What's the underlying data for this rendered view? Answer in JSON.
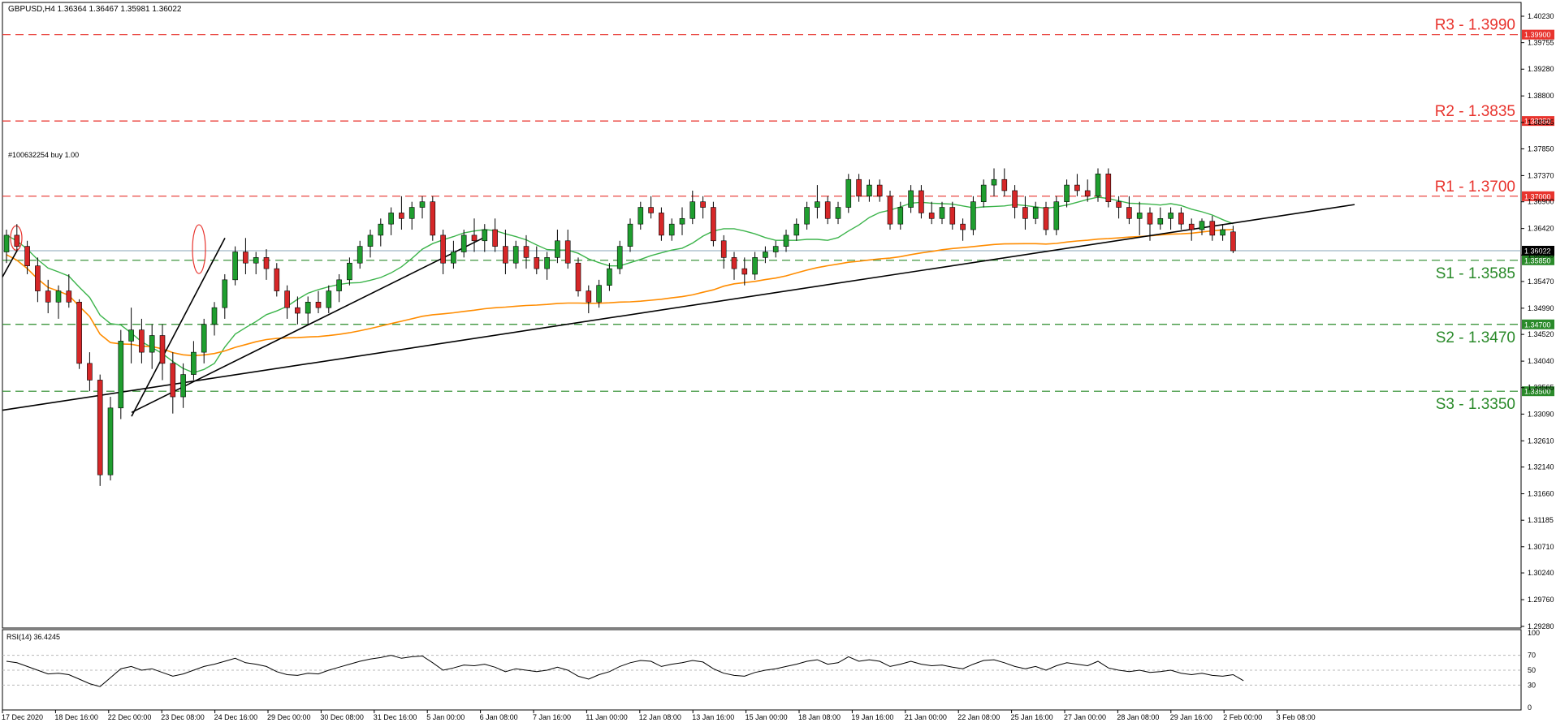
{
  "window": {
    "title": "GBPUSD,H4  1.36364 1.36467 1.35981 1.36022",
    "order_label": "#100632254 buy 1.00"
  },
  "colors": {
    "bull": "#1f9e2f",
    "bear": "#d62728",
    "ma_fast": "#3cb44b",
    "ma_slow": "#ff8c00",
    "resistance": "#e8342e",
    "support": "#2a8a2a",
    "trend": "#000000"
  },
  "chart_data": {
    "type": "candlestick",
    "symbol": "GBPUSD",
    "timeframe": "H4",
    "ohlc": {
      "open": 1.36364,
      "high": 1.36467,
      "low": 1.35981,
      "close": 1.36022
    },
    "ylim": [
      1.2928,
      1.4023
    ],
    "y_ticks": [
      "1.40230",
      "1.39755",
      "1.39280",
      "1.38800",
      "1.38325",
      "1.37850",
      "1.37370",
      "1.36900",
      "1.36420",
      "1.35945",
      "1.35470",
      "1.34990",
      "1.34520",
      "1.34040",
      "1.33565",
      "1.33090",
      "1.32610",
      "1.32140",
      "1.31660",
      "1.31185",
      "1.30710",
      "1.30240",
      "1.29760",
      "1.29280"
    ],
    "x_ticks": [
      "17 Dec 2020",
      "18 Dec 16:00",
      "22 Dec 00:00",
      "23 Dec 08:00",
      "24 Dec 16:00",
      "29 Dec 00:00",
      "30 Dec 08:00",
      "31 Dec 16:00",
      "5 Jan 00:00",
      "6 Jan 08:00",
      "7 Jan 16:00",
      "11 Jan 00:00",
      "12 Jan 08:00",
      "13 Jan 16:00",
      "15 Jan 00:00",
      "18 Jan 08:00",
      "19 Jan 16:00",
      "21 Jan 00:00",
      "22 Jan 08:00",
      "25 Jan 16:00",
      "27 Jan 00:00",
      "28 Jan 08:00",
      "29 Jan 16:00",
      "2 Feb 00:00",
      "3 Feb 08:00"
    ],
    "levels": [
      {
        "name": "R3 - 1.3990",
        "price": 1.399,
        "tag": "1.39900",
        "kind": "resistance"
      },
      {
        "name": "R2 - 1.3835",
        "price": 1.3835,
        "tag": "1.38350",
        "kind": "resistance"
      },
      {
        "name": "R1 - 1.3700",
        "price": 1.37,
        "tag": "1.37000",
        "kind": "resistance"
      },
      {
        "name": "S1 - 1.3585",
        "price": 1.3585,
        "tag": "1.35850",
        "kind": "support"
      },
      {
        "name": "S2 - 1.3470",
        "price": 1.347,
        "tag": "1.34700",
        "kind": "support"
      },
      {
        "name": "S3 - 1.3350",
        "price": 1.335,
        "tag": "1.33500",
        "kind": "support"
      }
    ],
    "current_price": {
      "price": 1.36022,
      "tag": "1.36022"
    },
    "candles": [
      [
        1.36,
        1.364,
        1.358,
        1.363
      ],
      [
        1.363,
        1.365,
        1.36,
        1.361
      ],
      [
        1.361,
        1.362,
        1.356,
        1.3575
      ],
      [
        1.3575,
        1.359,
        1.351,
        1.353
      ],
      [
        1.353,
        1.355,
        1.349,
        1.351
      ],
      [
        1.351,
        1.354,
        1.348,
        1.353
      ],
      [
        1.353,
        1.356,
        1.35,
        1.351
      ],
      [
        1.351,
        1.3515,
        1.339,
        1.34
      ],
      [
        1.34,
        1.342,
        1.335,
        1.337
      ],
      [
        1.337,
        1.338,
        1.318,
        1.32
      ],
      [
        1.32,
        1.334,
        1.319,
        1.332
      ],
      [
        1.332,
        1.346,
        1.33,
        1.344
      ],
      [
        1.344,
        1.35,
        1.34,
        1.346
      ],
      [
        1.346,
        1.348,
        1.34,
        1.342
      ],
      [
        1.342,
        1.347,
        1.339,
        1.345
      ],
      [
        1.345,
        1.347,
        1.337,
        1.34
      ],
      [
        1.34,
        1.342,
        1.331,
        1.334
      ],
      [
        1.334,
        1.34,
        1.332,
        1.338
      ],
      [
        1.338,
        1.344,
        1.337,
        1.342
      ],
      [
        1.342,
        1.348,
        1.34,
        1.347
      ],
      [
        1.347,
        1.351,
        1.345,
        1.35
      ],
      [
        1.35,
        1.356,
        1.348,
        1.355
      ],
      [
        1.355,
        1.361,
        1.354,
        1.36
      ],
      [
        1.36,
        1.3625,
        1.356,
        1.358
      ],
      [
        1.358,
        1.36,
        1.356,
        1.359
      ],
      [
        1.359,
        1.3605,
        1.355,
        1.357
      ],
      [
        1.357,
        1.358,
        1.352,
        1.353
      ],
      [
        1.353,
        1.354,
        1.348,
        1.35
      ],
      [
        1.35,
        1.352,
        1.347,
        1.349
      ],
      [
        1.349,
        1.352,
        1.347,
        1.351
      ],
      [
        1.351,
        1.353,
        1.349,
        1.35
      ],
      [
        1.35,
        1.354,
        1.349,
        1.353
      ],
      [
        1.353,
        1.356,
        1.351,
        1.355
      ],
      [
        1.355,
        1.359,
        1.354,
        1.358
      ],
      [
        1.358,
        1.362,
        1.357,
        1.361
      ],
      [
        1.361,
        1.364,
        1.359,
        1.363
      ],
      [
        1.363,
        1.366,
        1.361,
        1.365
      ],
      [
        1.365,
        1.368,
        1.363,
        1.367
      ],
      [
        1.367,
        1.37,
        1.364,
        1.366
      ],
      [
        1.366,
        1.369,
        1.364,
        1.368
      ],
      [
        1.368,
        1.37,
        1.366,
        1.369
      ],
      [
        1.369,
        1.37,
        1.362,
        1.363
      ],
      [
        1.363,
        1.364,
        1.356,
        1.358
      ],
      [
        1.358,
        1.362,
        1.357,
        1.36
      ],
      [
        1.36,
        1.364,
        1.359,
        1.363
      ],
      [
        1.363,
        1.366,
        1.36,
        1.362
      ],
      [
        1.362,
        1.365,
        1.36,
        1.364
      ],
      [
        1.364,
        1.366,
        1.36,
        1.361
      ],
      [
        1.361,
        1.364,
        1.356,
        1.358
      ],
      [
        1.358,
        1.362,
        1.357,
        1.361
      ],
      [
        1.361,
        1.363,
        1.357,
        1.359
      ],
      [
        1.359,
        1.361,
        1.356,
        1.357
      ],
      [
        1.357,
        1.36,
        1.355,
        1.359
      ],
      [
        1.359,
        1.364,
        1.358,
        1.362
      ],
      [
        1.362,
        1.364,
        1.357,
        1.358
      ],
      [
        1.358,
        1.359,
        1.352,
        1.353
      ],
      [
        1.353,
        1.354,
        1.349,
        1.351
      ],
      [
        1.351,
        1.355,
        1.35,
        1.354
      ],
      [
        1.354,
        1.358,
        1.353,
        1.357
      ],
      [
        1.357,
        1.362,
        1.356,
        1.361
      ],
      [
        1.361,
        1.366,
        1.36,
        1.365
      ],
      [
        1.365,
        1.369,
        1.364,
        1.368
      ],
      [
        1.368,
        1.37,
        1.366,
        1.367
      ],
      [
        1.367,
        1.368,
        1.362,
        1.363
      ],
      [
        1.363,
        1.366,
        1.362,
        1.365
      ],
      [
        1.365,
        1.368,
        1.363,
        1.366
      ],
      [
        1.366,
        1.371,
        1.365,
        1.369
      ],
      [
        1.369,
        1.37,
        1.366,
        1.368
      ],
      [
        1.368,
        1.369,
        1.361,
        1.362
      ],
      [
        1.362,
        1.363,
        1.357,
        1.359
      ],
      [
        1.359,
        1.36,
        1.355,
        1.357
      ],
      [
        1.357,
        1.359,
        1.354,
        1.356
      ],
      [
        1.356,
        1.36,
        1.355,
        1.359
      ],
      [
        1.359,
        1.361,
        1.358,
        1.36
      ],
      [
        1.36,
        1.362,
        1.359,
        1.361
      ],
      [
        1.361,
        1.364,
        1.36,
        1.363
      ],
      [
        1.363,
        1.366,
        1.362,
        1.365
      ],
      [
        1.365,
        1.369,
        1.364,
        1.368
      ],
      [
        1.368,
        1.372,
        1.366,
        1.369
      ],
      [
        1.369,
        1.37,
        1.365,
        1.366
      ],
      [
        1.366,
        1.369,
        1.365,
        1.368
      ],
      [
        1.368,
        1.374,
        1.367,
        1.373
      ],
      [
        1.373,
        1.374,
        1.369,
        1.37
      ],
      [
        1.37,
        1.373,
        1.369,
        1.372
      ],
      [
        1.372,
        1.373,
        1.369,
        1.37
      ],
      [
        1.37,
        1.371,
        1.364,
        1.365
      ],
      [
        1.365,
        1.369,
        1.364,
        1.368
      ],
      [
        1.368,
        1.372,
        1.367,
        1.371
      ],
      [
        1.371,
        1.372,
        1.366,
        1.367
      ],
      [
        1.367,
        1.369,
        1.365,
        1.366
      ],
      [
        1.366,
        1.369,
        1.365,
        1.368
      ],
      [
        1.368,
        1.369,
        1.364,
        1.365
      ],
      [
        1.365,
        1.366,
        1.362,
        1.364
      ],
      [
        1.364,
        1.37,
        1.363,
        1.369
      ],
      [
        1.369,
        1.373,
        1.368,
        1.372
      ],
      [
        1.372,
        1.375,
        1.37,
        1.373
      ],
      [
        1.373,
        1.375,
        1.37,
        1.371
      ],
      [
        1.371,
        1.372,
        1.366,
        1.368
      ],
      [
        1.368,
        1.37,
        1.364,
        1.366
      ],
      [
        1.366,
        1.369,
        1.365,
        1.368
      ],
      [
        1.368,
        1.369,
        1.363,
        1.364
      ],
      [
        1.364,
        1.37,
        1.363,
        1.369
      ],
      [
        1.369,
        1.373,
        1.368,
        1.372
      ],
      [
        1.372,
        1.374,
        1.37,
        1.371
      ],
      [
        1.371,
        1.373,
        1.369,
        1.37
      ],
      [
        1.37,
        1.375,
        1.369,
        1.374
      ],
      [
        1.374,
        1.375,
        1.368,
        1.369
      ],
      [
        1.369,
        1.37,
        1.366,
        1.368
      ],
      [
        1.368,
        1.37,
        1.365,
        1.366
      ],
      [
        1.366,
        1.369,
        1.363,
        1.367
      ],
      [
        1.367,
        1.368,
        1.362,
        1.365
      ],
      [
        1.365,
        1.368,
        1.364,
        1.366
      ],
      [
        1.366,
        1.368,
        1.364,
        1.367
      ],
      [
        1.367,
        1.368,
        1.364,
        1.365
      ],
      [
        1.365,
        1.366,
        1.362,
        1.364
      ],
      [
        1.364,
        1.366,
        1.363,
        1.3655
      ],
      [
        1.3655,
        1.3665,
        1.362,
        1.363
      ],
      [
        1.363,
        1.365,
        1.362,
        1.364
      ],
      [
        1.3636,
        1.3647,
        1.3598,
        1.3602
      ]
    ],
    "indicators": [
      {
        "name": "MA fast",
        "color": "ma_fast"
      },
      {
        "name": "MA slow",
        "color": "ma_slow"
      }
    ],
    "annotations": [
      "trendline",
      "trendline",
      "trendline",
      "trendline",
      "ellipse",
      "ellipse"
    ],
    "rsi": {
      "label": "RSI(14) 36.4245",
      "value": 36.4245,
      "levels": [
        70,
        50,
        30
      ],
      "y_ticks": [
        "100",
        "70",
        "50",
        "30",
        "0"
      ],
      "values": [
        62,
        60,
        55,
        50,
        45,
        46,
        44,
        38,
        32,
        28,
        40,
        52,
        55,
        50,
        52,
        47,
        42,
        45,
        50,
        55,
        58,
        62,
        66,
        60,
        58,
        55,
        48,
        44,
        43,
        46,
        45,
        50,
        54,
        58,
        62,
        65,
        67,
        70,
        66,
        68,
        69,
        60,
        50,
        53,
        57,
        56,
        58,
        54,
        48,
        52,
        50,
        48,
        50,
        54,
        50,
        42,
        38,
        44,
        48,
        55,
        60,
        63,
        62,
        55,
        58,
        60,
        63,
        61,
        52,
        46,
        43,
        42,
        47,
        50,
        52,
        55,
        58,
        62,
        64,
        58,
        60,
        68,
        62,
        64,
        62,
        55,
        58,
        62,
        58,
        56,
        57,
        54,
        52,
        58,
        63,
        64,
        60,
        55,
        52,
        55,
        50,
        56,
        60,
        58,
        56,
        62,
        53,
        50,
        48,
        50,
        47,
        48,
        50,
        46,
        44,
        46,
        43,
        42,
        44,
        36
      ]
    }
  }
}
